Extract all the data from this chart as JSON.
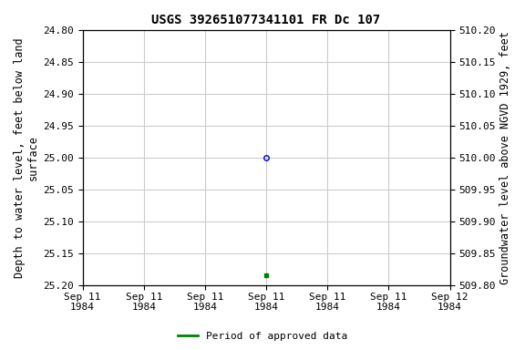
{
  "title": "USGS 392651077341101 FR Dc 107",
  "ylabel_left": "Depth to water level, feet below land\nsurface",
  "ylabel_right": "Groundwater level above NGVD 1929, feet",
  "ylim_left": [
    25.2,
    24.8
  ],
  "ylim_right": [
    509.8,
    510.2
  ],
  "yticks_left": [
    24.8,
    24.85,
    24.9,
    24.95,
    25.0,
    25.05,
    25.1,
    25.15,
    25.2
  ],
  "yticks_right": [
    510.2,
    510.15,
    510.1,
    510.05,
    510.0,
    509.95,
    509.9,
    509.85,
    509.8
  ],
  "point_x": 3.0,
  "point_y_depth": 25.0,
  "point2_x": 3.0,
  "point2_y_depth": 25.185,
  "x_start": 0,
  "x_end": 6.0,
  "xtick_positions": [
    0,
    1,
    2,
    3,
    4,
    5,
    6
  ],
  "xtick_labels": [
    "Sep 11\n1984",
    "Sep 11\n1984",
    "Sep 11\n1984",
    "Sep 11\n1984",
    "Sep 11\n1984",
    "Sep 11\n1984",
    "Sep 12\n1984"
  ],
  "open_circle_color": "#0000cc",
  "filled_square_color": "#008000",
  "legend_label": "Period of approved data",
  "bg_color": "white",
  "grid_color": "#cccccc",
  "title_fontsize": 10,
  "axis_label_fontsize": 8.5,
  "tick_fontsize": 8,
  "font_family": "monospace"
}
